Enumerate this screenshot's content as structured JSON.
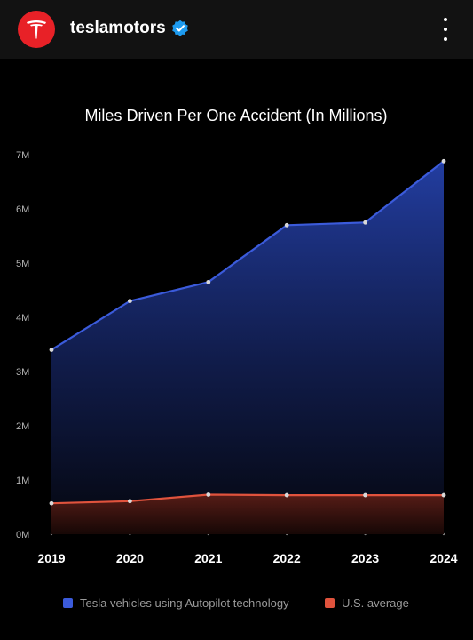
{
  "header": {
    "username": "teslamotors",
    "avatar_icon": "tesla-logo-icon",
    "verified_icon": "verified-badge-icon",
    "more_icon": "more-vertical-icon",
    "avatar_color": "#e82127",
    "verified_color": "#1d9bf0"
  },
  "chart_data": {
    "type": "area",
    "title": "Miles Driven Per One Accident (In Millions)",
    "xlabel": "",
    "ylabel": "",
    "x": [
      "2019",
      "2020",
      "2021",
      "2022",
      "2023",
      "2024"
    ],
    "y_ticks": [
      "0M",
      "1M",
      "2M",
      "3M",
      "4M",
      "5M",
      "6M",
      "7M"
    ],
    "ylim": [
      0,
      7
    ],
    "grid": false,
    "legend_position": "bottom",
    "series": [
      {
        "name": "Tesla vehicles using Autopilot technology",
        "color": "#3b5bdb",
        "values": [
          3.4,
          4.3,
          4.65,
          5.7,
          5.75,
          6.88
        ]
      },
      {
        "name": "U.S. average",
        "color": "#e0533d",
        "values": [
          0.57,
          0.61,
          0.73,
          0.72,
          0.72,
          0.72
        ]
      }
    ]
  }
}
